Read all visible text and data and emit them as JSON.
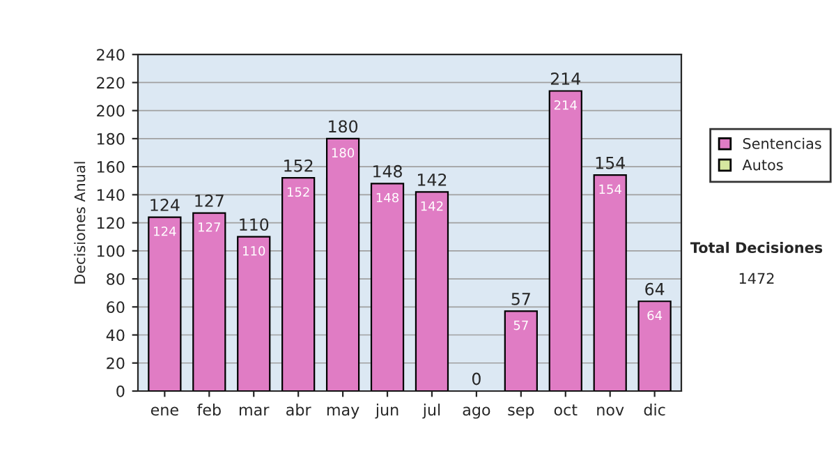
{
  "chart_data": {
    "type": "bar",
    "stacked": true,
    "ylabel": "Decisiones Anual",
    "categories": [
      "ene",
      "feb",
      "mar",
      "abr",
      "may",
      "jun",
      "jul",
      "ago",
      "sep",
      "oct",
      "nov",
      "dic"
    ],
    "series": [
      {
        "name": "Sentencias",
        "color": "#e07cc4",
        "values": [
          124,
          127,
          110,
          152,
          180,
          148,
          142,
          0,
          57,
          214,
          154,
          64
        ],
        "value_labels": [
          "124",
          "127",
          "110",
          "152",
          "180",
          "148",
          "142",
          null,
          "57",
          "214",
          "154",
          "64"
        ]
      },
      {
        "name": "Autos",
        "color": "#d6e8a0",
        "values": [
          0,
          0,
          0,
          0,
          0,
          0,
          0,
          0,
          0,
          0,
          0,
          0
        ]
      }
    ],
    "totals": [
      "124",
      "127",
      "110",
      "152",
      "180",
      "148",
      "142",
      "0",
      "57",
      "214",
      "154",
      "64"
    ],
    "ylim": [
      0,
      240
    ],
    "yticks": [
      0,
      20,
      40,
      60,
      80,
      100,
      120,
      140,
      160,
      180,
      200,
      220,
      240
    ],
    "grid": "y",
    "legend": "right",
    "annotations": [
      "Total Decisiones",
      "1472"
    ]
  }
}
